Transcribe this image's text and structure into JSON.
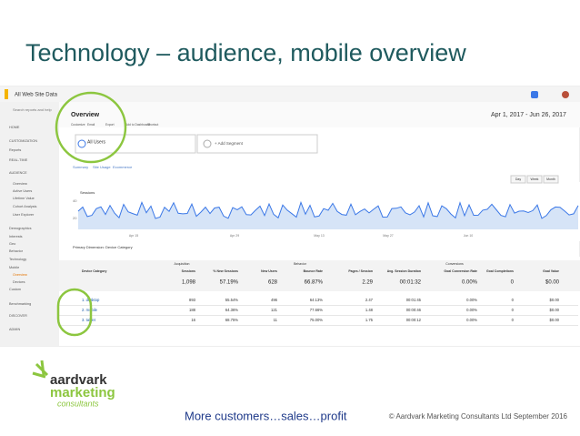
{
  "title": "Technology – audience, mobile overview",
  "screenshot": {
    "property": "All Web Site Data",
    "search": "Search reports and help",
    "nav": [
      "HOME",
      "CUSTOMIZATION",
      "Reports",
      "REAL-TIME",
      "AUDIENCE",
      "Overview",
      "Active Users",
      "Lifetime Value",
      "Cohort Analysis",
      "User Explorer",
      "Demographics",
      "Interests",
      "Geo",
      "Behavior",
      "Technology",
      "Mobile",
      "Overview",
      "Devices",
      "Custom",
      "Benchmarking",
      "DISCOVER",
      "ADMIN"
    ],
    "toolbar": [
      "Customize",
      "Email",
      "Export",
      "Add to Dashboard",
      "Shortcut"
    ],
    "tab": "Overview",
    "date_range": "Apr 1, 2017 - Jun 26, 2017",
    "segments": [
      "All Users",
      "+ Add Segment"
    ],
    "chart_tabs": [
      "Summary",
      "Site Usage",
      "Ecommerce"
    ],
    "metric": "Sessions",
    "yaxis": [
      "40",
      "20"
    ],
    "xaxis": [
      "Apr 15",
      "Apr 29",
      "May 13",
      "May 27",
      "Jun 10"
    ],
    "period_buttons": [
      "Day",
      "Week",
      "Month"
    ],
    "primary": "Primary Dimension: Device Category",
    "groups": [
      "Acquisition",
      "Behavior",
      "Conversions"
    ],
    "headers": [
      "Device Category",
      "Sessions",
      "% New Sessions",
      "New Users",
      "Bounce Rate",
      "Pages / Session",
      "Avg. Session Duration",
      "Goal Conversion Rate",
      "Goal Completions",
      "Goal Value"
    ],
    "totals": [
      "1,098",
      "57.19%",
      "628",
      "66.87%",
      "2.29",
      "00:01:32",
      "0.00%",
      "0",
      "$0.00"
    ],
    "rows": [
      [
        "1. desktop",
        "893",
        "55.54%",
        "496",
        "64.13%",
        "2.47",
        "00:01:45",
        "0.00%",
        "0",
        "$0.00"
      ],
      [
        "2. mobile",
        "188",
        "64.36%",
        "121",
        "77.66%",
        "1.48",
        "00:00:46",
        "0.00%",
        "0",
        "$0.00"
      ],
      [
        "3. tablet",
        "16",
        "68.75%",
        "11",
        "75.00%",
        "1.75",
        "00:00:12",
        "0.00%",
        "0",
        "$0.00"
      ]
    ]
  },
  "footer": {
    "logo": [
      "aardvark",
      "marketing",
      "consultants"
    ],
    "tagline": "More customers…sales…profit",
    "copyright": "© Aardvark Marketing Consultants Ltd September 2016"
  }
}
